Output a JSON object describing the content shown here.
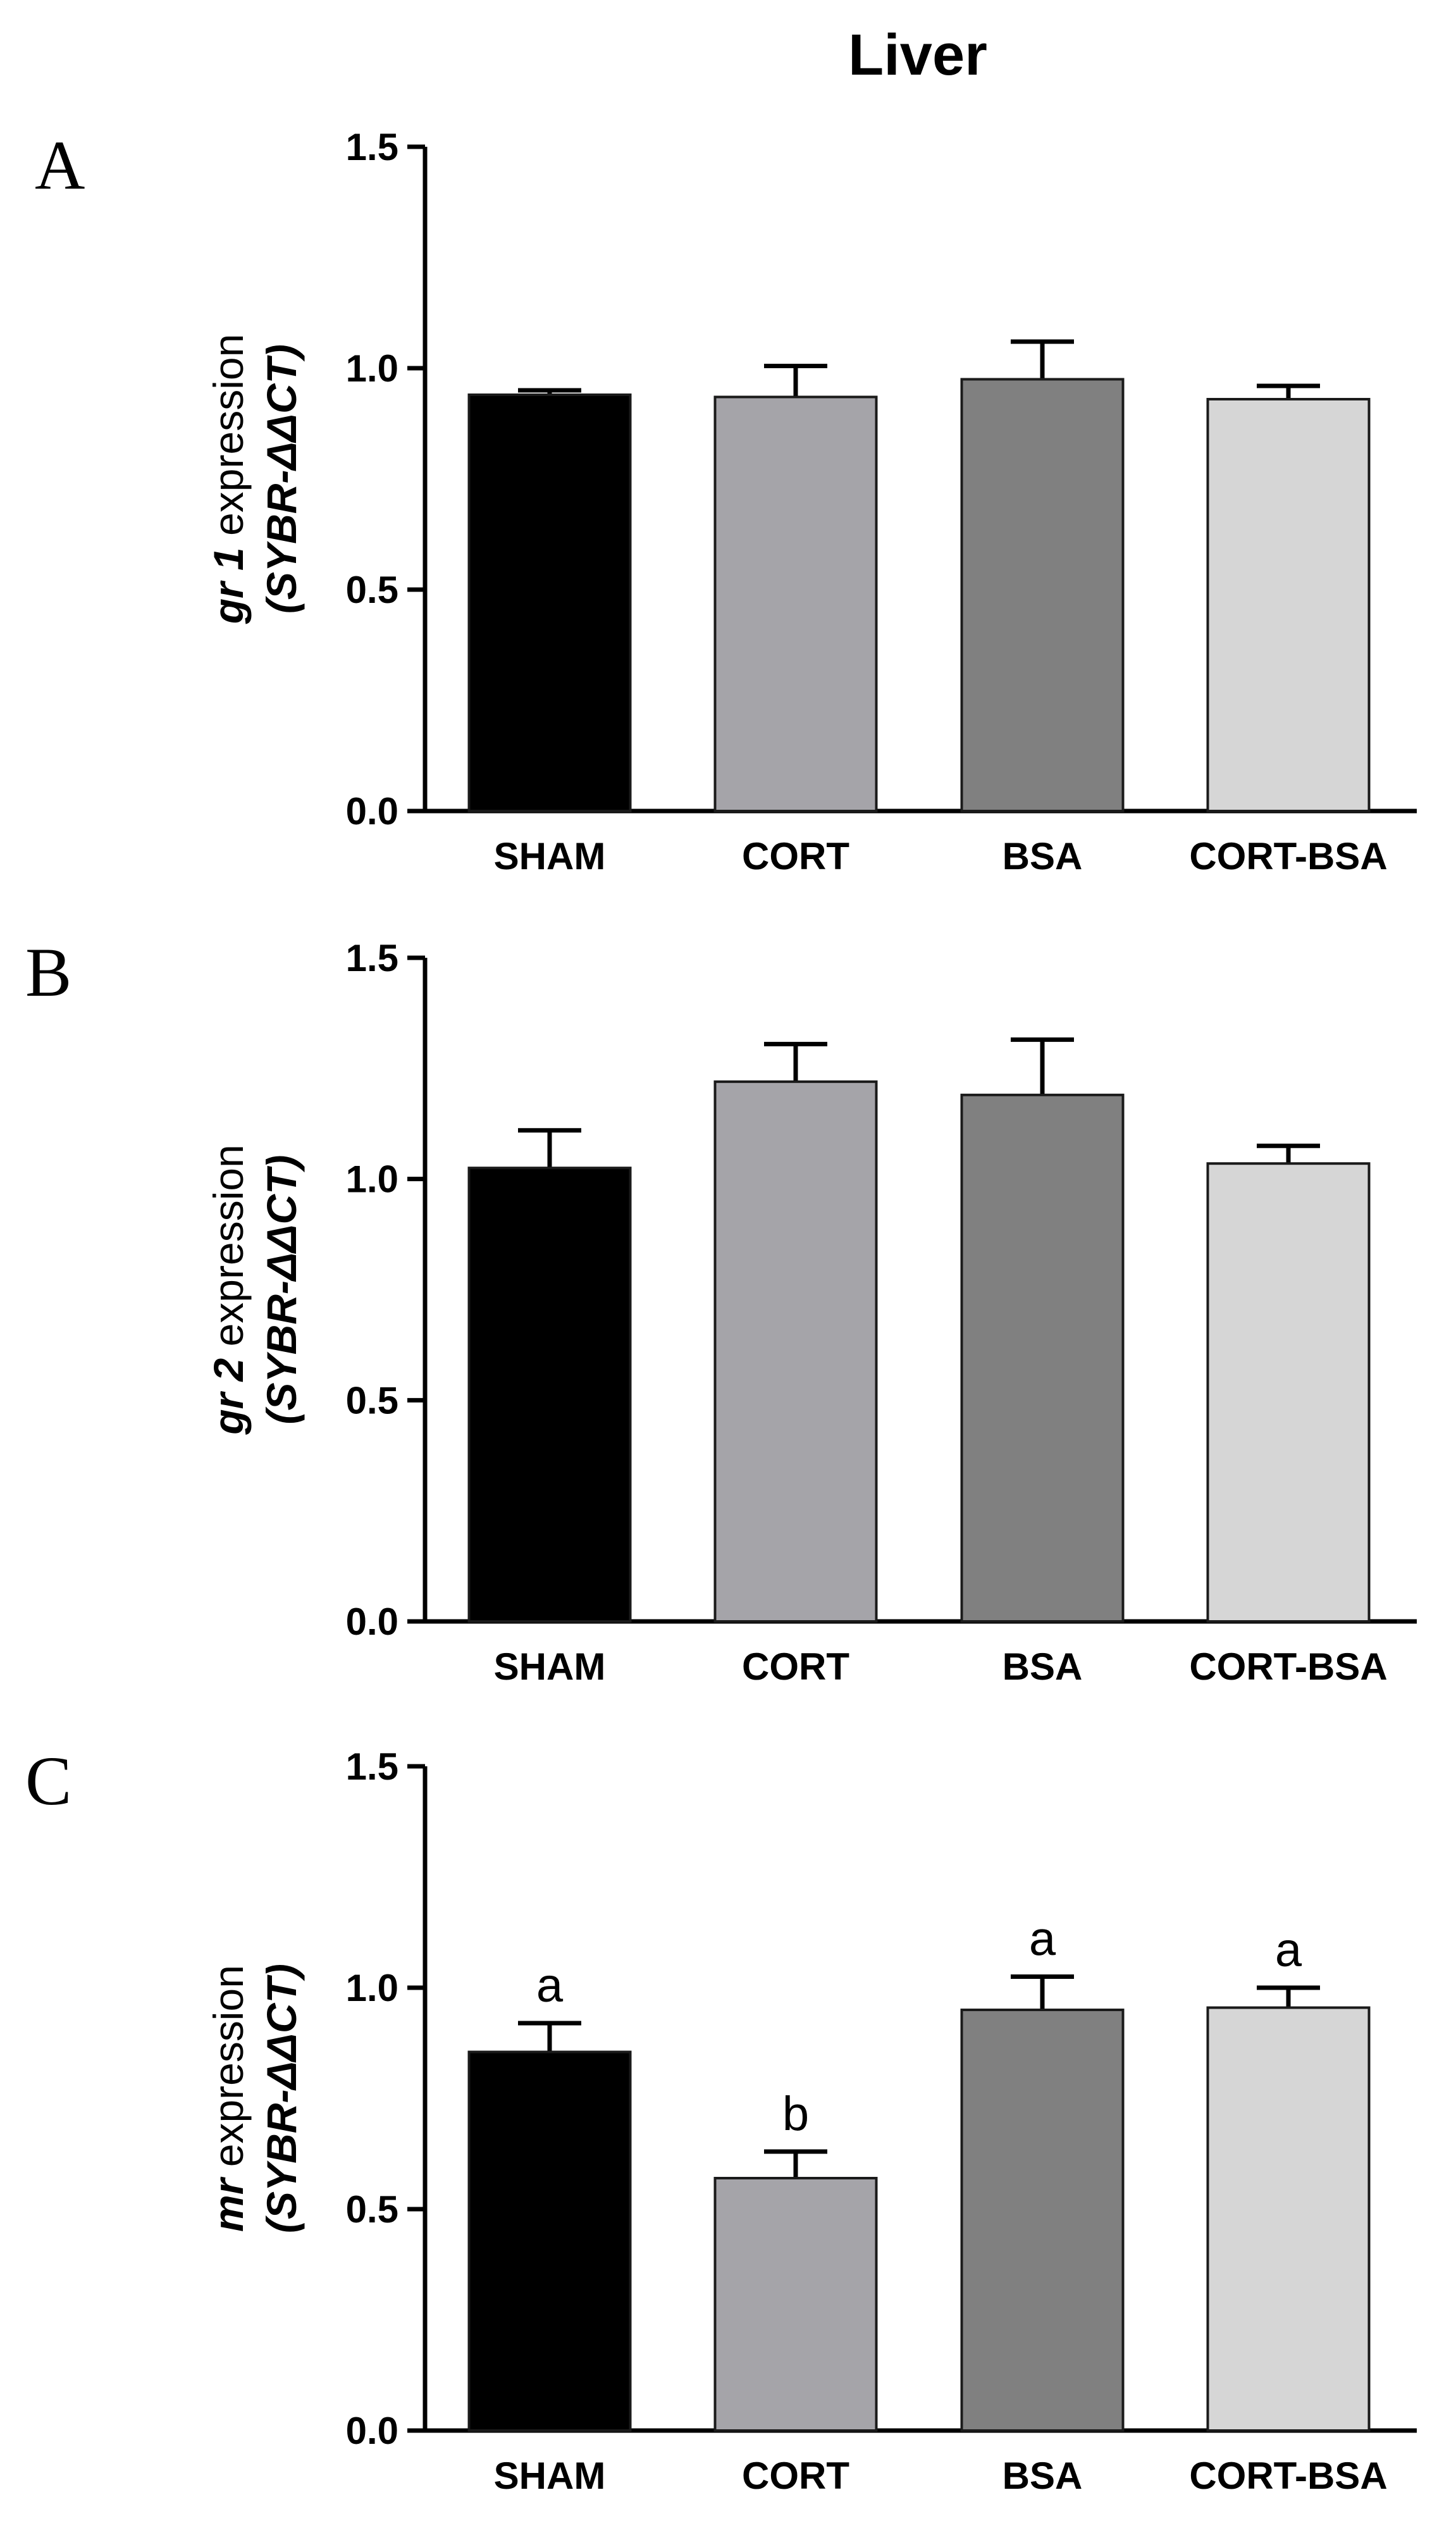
{
  "figure": {
    "title": "Liver",
    "colors": {
      "axis": "#000000",
      "bar_outline": "#1a1a1a",
      "SHAM": "#000000",
      "CORT": "#a5a4a9",
      "BSA": "#808080",
      "CORT-BSA": "#d6d6d6"
    }
  },
  "chart_data": [
    {
      "type": "bar",
      "panel": "A",
      "categories": [
        "SHAM",
        "CORT",
        "BSA",
        "CORT-BSA"
      ],
      "values": [
        0.94,
        0.935,
        0.975,
        0.93
      ],
      "errors": [
        0.01,
        0.07,
        0.085,
        0.03
      ],
      "ylabel_gene": "gr 1",
      "ylabel_suffix": " expression",
      "ylabel_unit": "(SYBR-ΔΔCT)",
      "ylim": [
        0,
        1.5
      ],
      "yticks": [
        "0.0",
        "0.5",
        "1.0",
        "1.5"
      ],
      "annotations": []
    },
    {
      "type": "bar",
      "panel": "B",
      "categories": [
        "SHAM",
        "CORT",
        "BSA",
        "CORT-BSA"
      ],
      "values": [
        1.025,
        1.22,
        1.19,
        1.035
      ],
      "errors": [
        0.085,
        0.085,
        0.125,
        0.04
      ],
      "ylabel_gene": "gr 2",
      "ylabel_suffix": " expression",
      "ylabel_unit": "(SYBR-ΔΔCT)",
      "ylim": [
        0,
        1.5
      ],
      "yticks": [
        "0.0",
        "0.5",
        "1.0",
        "1.5"
      ],
      "annotations": []
    },
    {
      "type": "bar",
      "panel": "C",
      "categories": [
        "SHAM",
        "CORT",
        "BSA",
        "CORT-BSA"
      ],
      "values": [
        0.855,
        0.57,
        0.95,
        0.955
      ],
      "errors": [
        0.065,
        0.06,
        0.075,
        0.045
      ],
      "ylabel_gene": "mr",
      "ylabel_suffix": " expression",
      "ylabel_unit": "(SYBR-ΔΔCT)",
      "ylim": [
        0,
        1.5
      ],
      "yticks": [
        "0.0",
        "0.5",
        "1.0",
        "1.5"
      ],
      "annotations": [
        "a",
        "b",
        "a",
        "a"
      ]
    }
  ]
}
